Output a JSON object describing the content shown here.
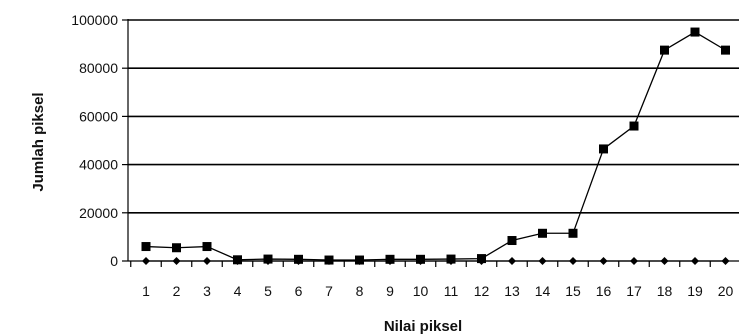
{
  "chart_data": {
    "type": "line",
    "xlabel": "Nilai piksel",
    "ylabel": "Jumlah piksel",
    "categories": [
      "1",
      "2",
      "3",
      "4",
      "5",
      "6",
      "7",
      "8",
      "9",
      "10",
      "11",
      "12",
      "13",
      "14",
      "15",
      "16",
      "17",
      "18",
      "19",
      "20"
    ],
    "y_ticks": [
      "0",
      "20000",
      "40000",
      "60000",
      "80000",
      "100000"
    ],
    "ylim": [
      0,
      100000
    ],
    "grid": true,
    "legend": "none",
    "series": [
      {
        "marker": "square",
        "color": "#000000",
        "values": [
          6000,
          5500,
          6000,
          500,
          800,
          700,
          400,
          400,
          700,
          700,
          800,
          1000,
          8500,
          11500,
          11500,
          46500,
          56000,
          87500,
          95000,
          87500
        ]
      },
      {
        "marker": "diamond",
        "color": "#000000",
        "values": [
          0,
          0,
          0,
          0,
          0,
          0,
          0,
          0,
          0,
          0,
          0,
          0,
          0,
          0,
          0,
          0,
          0,
          0,
          0,
          0
        ]
      }
    ]
  }
}
